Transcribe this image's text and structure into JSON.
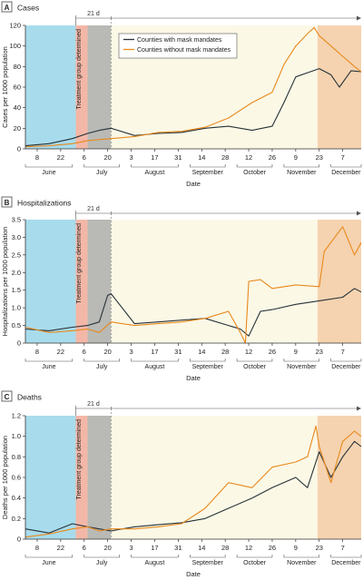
{
  "colors": {
    "with_mandate": "#263238",
    "without_mandate": "#e8891c",
    "pre_period_shade": "#a8dcec",
    "baseline_shade": "#f3b7a7",
    "treatment_shade": "#b9b9b5",
    "observation_shade": "#fbf8e6",
    "late_shade": "#f5d3b0",
    "axis": "#333333"
  },
  "legend_position": "top-center (panel A)",
  "shared": {
    "window_label": "21 d",
    "treatment_label": "Treatment group determined",
    "xlabel": "Date",
    "xtick_labels": [
      "8",
      "22",
      "6",
      "20",
      "3",
      "17",
      "31",
      "14",
      "28",
      "12",
      "26",
      "9",
      "23",
      "7"
    ],
    "month_labels": [
      "June",
      "July",
      "August",
      "September",
      "October",
      "November",
      "December"
    ]
  },
  "chart_data": [
    {
      "type": "line",
      "panel_letter": "A",
      "title": "Cases",
      "ylabel": "Cases per 1000 population",
      "xlabel": "Date",
      "ylim": [
        0,
        120
      ],
      "yticks": [
        0,
        20,
        40,
        60,
        80,
        100,
        120
      ],
      "ytick_labels": [
        "0",
        "20",
        "40",
        "60",
        "80",
        "100",
        "120"
      ],
      "xlim": [
        "2020-06-01",
        "2020-12-18"
      ],
      "legend": [
        "Counties with mask mandates",
        "Counties without mask mandates"
      ],
      "series": [
        {
          "name": "Counties with mask mandates",
          "key": "with_mandate",
          "x": [
            "2020-06-01",
            "2020-06-15",
            "2020-06-29",
            "2020-07-08",
            "2020-07-15",
            "2020-07-22",
            "2020-08-05",
            "2020-08-19",
            "2020-09-02",
            "2020-09-16",
            "2020-09-30",
            "2020-10-14",
            "2020-10-26",
            "2020-11-02",
            "2020-11-09",
            "2020-11-16",
            "2020-11-23",
            "2020-11-30",
            "2020-12-05",
            "2020-12-12",
            "2020-12-18"
          ],
          "y": [
            3,
            5,
            10,
            15,
            18,
            20,
            13,
            15,
            16,
            20,
            22,
            18,
            22,
            45,
            70,
            74,
            78,
            72,
            60,
            76,
            75
          ]
        },
        {
          "name": "Counties without mask mandates",
          "key": "without_mandate",
          "x": [
            "2020-06-01",
            "2020-06-15",
            "2020-06-29",
            "2020-07-08",
            "2020-07-15",
            "2020-07-22",
            "2020-08-05",
            "2020-08-19",
            "2020-09-02",
            "2020-09-16",
            "2020-09-30",
            "2020-10-14",
            "2020-10-26",
            "2020-11-02",
            "2020-11-09",
            "2020-11-16",
            "2020-11-20",
            "2020-11-23",
            "2020-11-30",
            "2020-12-07",
            "2020-12-14",
            "2020-12-18"
          ],
          "y": [
            2,
            3,
            5,
            8,
            9,
            10,
            12,
            16,
            17,
            21,
            30,
            45,
            55,
            82,
            100,
            112,
            118,
            110,
            100,
            90,
            80,
            75
          ]
        }
      ]
    },
    {
      "type": "line",
      "panel_letter": "B",
      "title": "Hospitalizations",
      "ylabel": "Hospitalizations per 1000 population",
      "xlabel": "Date",
      "ylim": [
        0,
        3.5
      ],
      "yticks": [
        0,
        0.5,
        1.0,
        1.5,
        2.0,
        2.5,
        3.0,
        3.5
      ],
      "ytick_labels": [
        "0",
        "0.5",
        "1.0",
        "1.5",
        "2.0",
        "2.5",
        "3.0",
        "3.5"
      ],
      "xlim": [
        "2020-06-01",
        "2020-12-18"
      ],
      "series": [
        {
          "name": "Counties with mask mandates",
          "key": "with_mandate",
          "x": [
            "2020-06-01",
            "2020-06-15",
            "2020-06-29",
            "2020-07-08",
            "2020-07-15",
            "2020-07-20",
            "2020-07-22",
            "2020-08-05",
            "2020-08-19",
            "2020-09-02",
            "2020-09-16",
            "2020-09-30",
            "2020-10-07",
            "2020-10-12",
            "2020-10-19",
            "2020-10-26",
            "2020-11-09",
            "2020-11-23",
            "2020-12-07",
            "2020-12-14",
            "2020-12-18"
          ],
          "y": [
            0.4,
            0.35,
            0.45,
            0.5,
            0.6,
            1.35,
            1.4,
            0.55,
            0.6,
            0.65,
            0.7,
            0.5,
            0.4,
            0.2,
            0.9,
            0.95,
            1.1,
            1.2,
            1.3,
            1.55,
            1.45
          ]
        },
        {
          "name": "Counties without mask mandates",
          "key": "without_mandate",
          "x": [
            "2020-06-01",
            "2020-06-15",
            "2020-06-29",
            "2020-07-08",
            "2020-07-15",
            "2020-07-22",
            "2020-08-05",
            "2020-08-19",
            "2020-09-02",
            "2020-09-16",
            "2020-09-30",
            "2020-10-07",
            "2020-10-10",
            "2020-10-12",
            "2020-10-19",
            "2020-10-26",
            "2020-11-09",
            "2020-11-23",
            "2020-11-26",
            "2020-12-07",
            "2020-12-14",
            "2020-12-18"
          ],
          "y": [
            0.45,
            0.3,
            0.35,
            0.4,
            0.3,
            0.6,
            0.5,
            0.55,
            0.6,
            0.7,
            0.9,
            0.3,
            0,
            1.75,
            1.8,
            1.55,
            1.65,
            1.6,
            2.6,
            3.3,
            2.5,
            2.85
          ]
        }
      ]
    },
    {
      "type": "line",
      "panel_letter": "C",
      "title": "Deaths",
      "ylabel": "Deaths per 1000 population",
      "xlabel": "Date",
      "ylim": [
        0,
        1.2
      ],
      "yticks": [
        0,
        0.2,
        0.4,
        0.6,
        0.8,
        1.0,
        1.2
      ],
      "ytick_labels": [
        "0",
        "0.2",
        "0.4",
        "0.6",
        "0.8",
        "1.0",
        "1.2"
      ],
      "xlim": [
        "2020-06-01",
        "2020-12-18"
      ],
      "series": [
        {
          "name": "Counties with mask mandates",
          "key": "with_mandate",
          "x": [
            "2020-06-01",
            "2020-06-15",
            "2020-06-29",
            "2020-07-08",
            "2020-07-15",
            "2020-07-22",
            "2020-08-05",
            "2020-08-19",
            "2020-09-02",
            "2020-09-16",
            "2020-09-30",
            "2020-10-14",
            "2020-10-26",
            "2020-11-09",
            "2020-11-16",
            "2020-11-23",
            "2020-11-30",
            "2020-12-07",
            "2020-12-14",
            "2020-12-18"
          ],
          "y": [
            0.1,
            0.06,
            0.15,
            0.12,
            0.1,
            0.08,
            0.12,
            0.14,
            0.16,
            0.2,
            0.3,
            0.4,
            0.5,
            0.6,
            0.5,
            0.85,
            0.6,
            0.8,
            0.95,
            0.9
          ]
        },
        {
          "name": "Counties without mask mandates",
          "key": "without_mandate",
          "x": [
            "2020-06-01",
            "2020-06-15",
            "2020-06-29",
            "2020-07-08",
            "2020-07-15",
            "2020-07-22",
            "2020-08-05",
            "2020-08-19",
            "2020-09-02",
            "2020-09-16",
            "2020-09-30",
            "2020-10-14",
            "2020-10-26",
            "2020-11-09",
            "2020-11-16",
            "2020-11-21",
            "2020-11-23",
            "2020-11-30",
            "2020-12-07",
            "2020-12-14",
            "2020-12-18"
          ],
          "y": [
            0.02,
            0.05,
            0.1,
            0.12,
            0.08,
            0.1,
            0.1,
            0.12,
            0.15,
            0.3,
            0.55,
            0.5,
            0.7,
            0.75,
            0.8,
            1.1,
            0.9,
            0.55,
            0.95,
            1.05,
            1.0
          ]
        }
      ]
    }
  ]
}
